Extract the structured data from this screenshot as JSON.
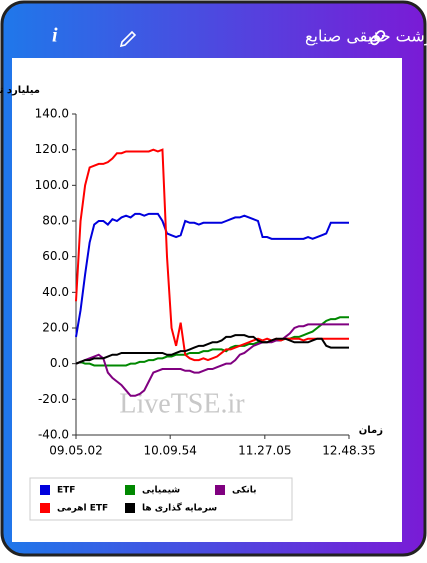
{
  "header": {
    "title": "پول درشت حقیقی صنایع",
    "info_label": "i"
  },
  "chart_data": {
    "type": "line",
    "y_label": "میلیارد تومان",
    "x_label": "زمان",
    "watermark": "LiveTSE.ir",
    "xlim": [
      0,
      60
    ],
    "xticks": [
      {
        "value": 0,
        "label": "09.05.02"
      },
      {
        "value": 20.7,
        "label": "10.09.54"
      },
      {
        "value": 41.5,
        "label": "11.27.05"
      },
      {
        "value": 60,
        "label": "12.48.35"
      }
    ],
    "ylim": [
      -40,
      140
    ],
    "yticks": [
      {
        "value": -40,
        "label": "-40.0"
      },
      {
        "value": -20,
        "label": "-20.0"
      },
      {
        "value": 0,
        "label": "0.0"
      },
      {
        "value": 20,
        "label": "20.0"
      },
      {
        "value": 40,
        "label": "40.0"
      },
      {
        "value": 60,
        "label": "60.0"
      },
      {
        "value": 80,
        "label": "80.0"
      },
      {
        "value": 100,
        "label": "100.0"
      },
      {
        "value": 120,
        "label": "120.0"
      },
      {
        "value": 140,
        "label": "140.0"
      }
    ],
    "series": [
      {
        "name": "ETF",
        "color": "#0000dd",
        "values": [
          15,
          30,
          50,
          68,
          78,
          80,
          80,
          78,
          81,
          80,
          82,
          83,
          82,
          84,
          84,
          83,
          84,
          84,
          84,
          80,
          73,
          72,
          71,
          72,
          80,
          79,
          79,
          78,
          79,
          79,
          79,
          79,
          79,
          80,
          81,
          82,
          82,
          83,
          82,
          81,
          80,
          71,
          71,
          70,
          70,
          70,
          70,
          70,
          70,
          70,
          70,
          71,
          70,
          71,
          72,
          73,
          79,
          79,
          79,
          79,
          79
        ]
      },
      {
        "name": "شیمیایی",
        "color": "#008800",
        "values": [
          0,
          1,
          0,
          0,
          -1,
          -1,
          -1,
          -1,
          -1,
          -1,
          -1,
          -1,
          0,
          0,
          1,
          1,
          2,
          2,
          3,
          3,
          4,
          4,
          5,
          5,
          5,
          6,
          6,
          6,
          7,
          7,
          8,
          8,
          8,
          7,
          9,
          10,
          10,
          10,
          11,
          11,
          12,
          12,
          12,
          13,
          13,
          13,
          14,
          14,
          15,
          15,
          16,
          17,
          18,
          20,
          22,
          24,
          25,
          25,
          26,
          26,
          26
        ]
      },
      {
        "name": "بانکی",
        "color": "#800080",
        "values": [
          0,
          1,
          2,
          3,
          4,
          5,
          3,
          -5,
          -8,
          -10,
          -12,
          -15,
          -18,
          -18,
          -17,
          -15,
          -10,
          -5,
          -4,
          -3,
          -3,
          -3,
          -3,
          -3,
          -4,
          -4,
          -5,
          -5,
          -4,
          -3,
          -3,
          -2,
          -1,
          0,
          0,
          2,
          5,
          6,
          8,
          10,
          11,
          12,
          12,
          12,
          13,
          13,
          15,
          17,
          20,
          21,
          21,
          22,
          22,
          22,
          22,
          22,
          22,
          22,
          22,
          22,
          22
        ]
      },
      {
        "name": "اهرمی ETF",
        "color": "#ff0000",
        "values": [
          35,
          80,
          100,
          110,
          111,
          112,
          112,
          113,
          115,
          118,
          118,
          119,
          119,
          119,
          119,
          119,
          119,
          120,
          119,
          120,
          60,
          20,
          10,
          23,
          5,
          3,
          2,
          2,
          3,
          2,
          3,
          4,
          6,
          8,
          8,
          9,
          10,
          11,
          12,
          13,
          14,
          13,
          14,
          13,
          14,
          13,
          14,
          14,
          14,
          14,
          13,
          14,
          14,
          14,
          14,
          14,
          14,
          14,
          14,
          14,
          14
        ]
      },
      {
        "name": "سرمایه گذاری ها",
        "color": "#000000",
        "values": [
          0,
          1,
          2,
          2,
          3,
          3,
          3,
          4,
          5,
          5,
          6,
          6,
          6,
          6,
          6,
          6,
          6,
          6,
          6,
          6,
          5,
          5,
          6,
          7,
          7,
          8,
          9,
          10,
          10,
          11,
          12,
          12,
          13,
          15,
          15,
          16,
          16,
          16,
          15,
          15,
          13,
          12,
          12,
          13,
          14,
          14,
          14,
          13,
          12,
          12,
          12,
          12,
          13,
          14,
          14,
          10,
          9,
          9,
          9,
          9,
          9
        ]
      }
    ]
  }
}
